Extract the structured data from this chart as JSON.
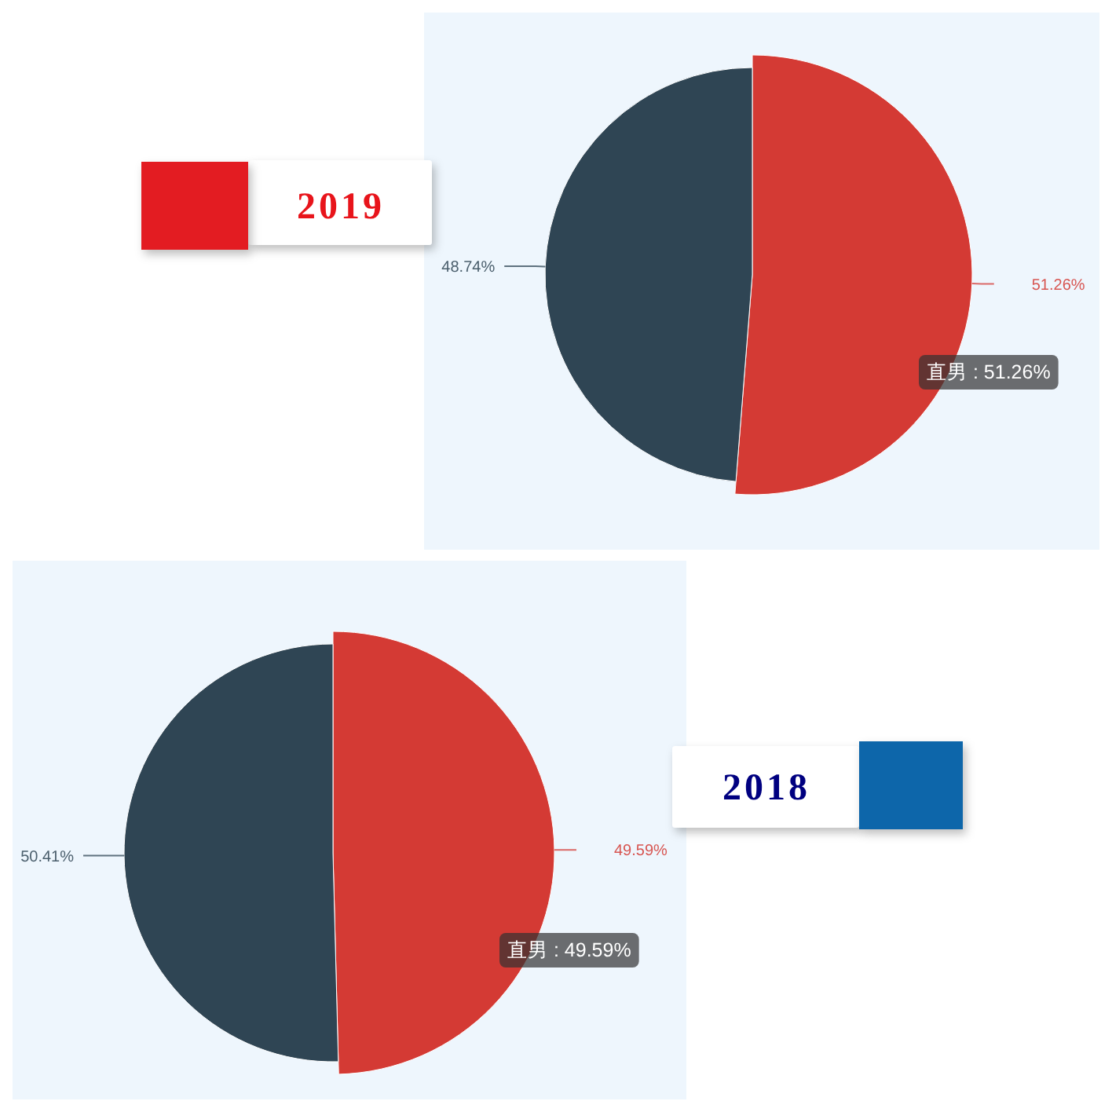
{
  "chart_data": [
    {
      "type": "pie",
      "title": "2019",
      "categories": [
        "直男",
        null
      ],
      "values": [
        51.26,
        48.74
      ],
      "colors": [
        "#d43a34",
        "#2f4554"
      ],
      "value_labels": [
        "51.26%",
        "48.74%"
      ]
    },
    {
      "type": "pie",
      "title": "2018",
      "categories": [
        "直男",
        null
      ],
      "values": [
        49.59,
        50.41
      ],
      "colors": [
        "#d43a34",
        "#2f4554"
      ],
      "value_labels": [
        "49.59%",
        "50.41%"
      ]
    }
  ]
}
